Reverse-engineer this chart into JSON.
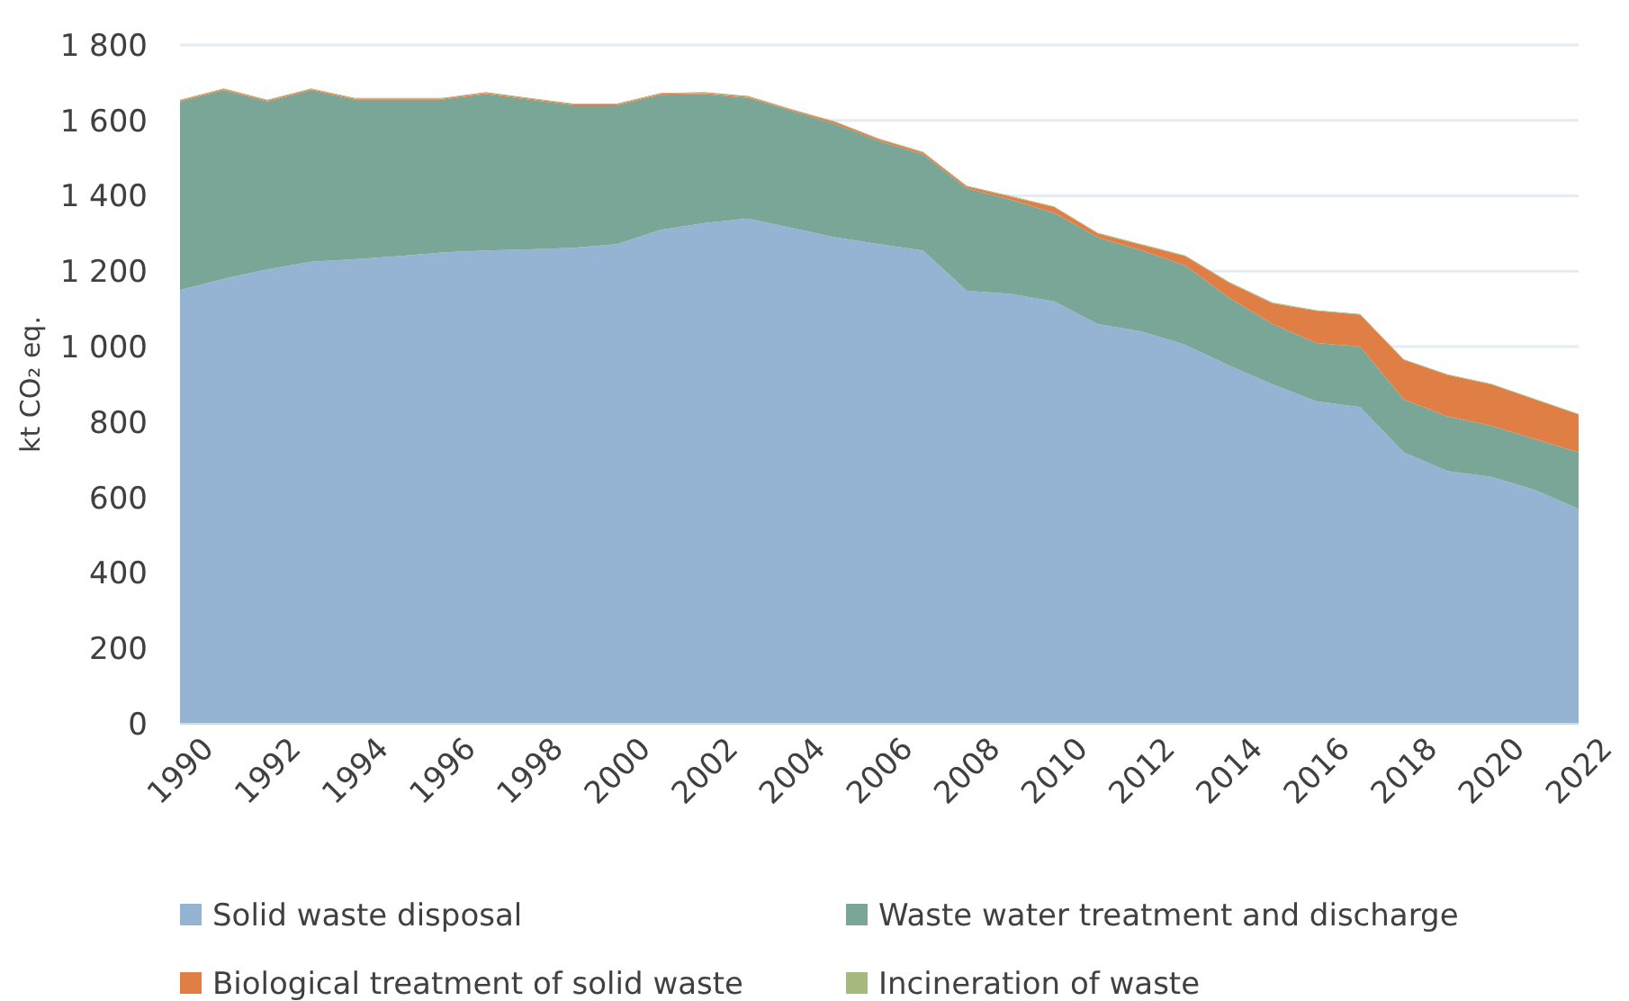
{
  "chart_data": {
    "type": "area",
    "stacked": true,
    "ylabel": "kt CO₂ eq.",
    "x": [
      1990,
      1991,
      1992,
      1993,
      1994,
      1995,
      1996,
      1997,
      1998,
      1999,
      2000,
      2001,
      2002,
      2003,
      2004,
      2005,
      2006,
      2007,
      2008,
      2009,
      2010,
      2011,
      2012,
      2013,
      2014,
      2015,
      2016,
      2017,
      2018,
      2019,
      2020,
      2021,
      2022
    ],
    "series": [
      {
        "name": "Solid waste disposal",
        "color": "#95b3d2",
        "values": [
          1150,
          1180,
          1205,
          1225,
          1232,
          1240,
          1250,
          1255,
          1258,
          1262,
          1272,
          1310,
          1328,
          1340,
          1315,
          1290,
          1272,
          1255,
          1148,
          1140,
          1120,
          1060,
          1040,
          1005,
          950,
          900,
          855,
          840,
          720,
          670,
          655,
          620,
          570
        ]
      },
      {
        "name": "Waste water treatment and discharge",
        "color": "#7aa698",
        "values": [
          500,
          500,
          445,
          455,
          423,
          415,
          405,
          415,
          397,
          378,
          368,
          358,
          342,
          320,
          310,
          300,
          273,
          255,
          272,
          250,
          235,
          230,
          215,
          210,
          180,
          160,
          155,
          160,
          140,
          145,
          135,
          135,
          150
        ]
      },
      {
        "name": "Biological treatment of solid waste",
        "color": "#e07f45",
        "values": [
          3,
          3,
          3,
          3,
          3,
          3,
          3,
          3,
          3,
          3,
          3,
          3,
          3,
          3,
          3,
          5,
          5,
          5,
          5,
          8,
          15,
          10,
          15,
          25,
          40,
          55,
          85,
          85,
          105,
          110,
          110,
          105,
          100
        ]
      },
      {
        "name": "Incineration of waste",
        "color": "#a6b87e",
        "values": [
          2,
          2,
          2,
          2,
          2,
          2,
          2,
          2,
          2,
          2,
          2,
          2,
          2,
          2,
          2,
          2,
          2,
          2,
          2,
          2,
          2,
          2,
          2,
          2,
          2,
          2,
          2,
          2,
          2,
          2,
          2,
          2,
          2
        ]
      }
    ],
    "xlim": [
      1990,
      2022
    ],
    "xticks": [
      1990,
      1992,
      1994,
      1996,
      1998,
      2000,
      2002,
      2004,
      2006,
      2008,
      2010,
      2012,
      2014,
      2016,
      2018,
      2020,
      2022
    ],
    "ylim": [
      0,
      1800
    ],
    "yticks": [
      0,
      200,
      400,
      600,
      800,
      {
        "value": 1000,
        "label": "1 000"
      },
      {
        "value": 1200,
        "label": "1 200"
      },
      {
        "value": 1400,
        "label": "1 400"
      },
      {
        "value": 1600,
        "label": "1 600"
      },
      {
        "value": 1800,
        "label": "1 800"
      }
    ],
    "grid": "y",
    "legend": "bottom"
  }
}
